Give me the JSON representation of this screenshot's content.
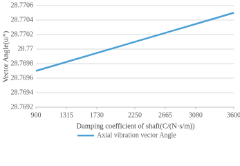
{
  "chart_data": {
    "type": "line",
    "x_label": "Damping coefficient of shaft(C/(N·s/m))",
    "y_label": "Vector Angle(u/°)",
    "series": [
      {
        "name": "Axial vibration vector Angle",
        "color": "#4a9fd6",
        "x": [
          900,
          3600
        ],
        "values": [
          28.7697,
          28.7705
        ]
      }
    ],
    "xlim": [
      900,
      3600
    ],
    "xticks": [
      900,
      1315,
      1730,
      2250,
      2665,
      3080,
      3600
    ],
    "ylim": [
      28.7692,
      28.7706
    ],
    "yticks": [
      28.7692,
      28.7694,
      28.7696,
      28.7698,
      28.77,
      28.7702,
      28.7704,
      28.7706
    ],
    "grid": true,
    "legend": "bottom"
  }
}
